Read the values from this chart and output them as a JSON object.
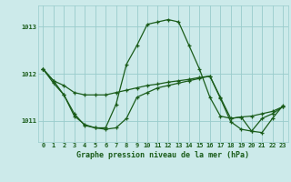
{
  "title": "Graphe pression niveau de la mer (hPa)",
  "bg_color": "#cceaea",
  "grid_color": "#99cccc",
  "line_color": "#1a5c1a",
  "xlim": [
    -0.5,
    23.5
  ],
  "ylim": [
    1010.55,
    1013.45
  ],
  "yticks": [
    1011,
    1012,
    1013
  ],
  "xtick_labels": [
    "0",
    "1",
    "2",
    "3",
    "4",
    "5",
    "6",
    "7",
    "8",
    "9",
    "10",
    "11",
    "12",
    "13",
    "14",
    "15",
    "16",
    "17",
    "18",
    "19",
    "20",
    "21",
    "22",
    "23"
  ],
  "series": [
    [
      1012.1,
      1011.85,
      1011.75,
      1011.6,
      1011.55,
      1011.55,
      1011.55,
      1011.6,
      1011.65,
      1011.7,
      1011.75,
      1011.78,
      1011.82,
      1011.85,
      1011.88,
      1011.92,
      1011.95,
      1011.5,
      1011.05,
      1011.08,
      1011.1,
      1011.15,
      1011.2,
      1011.3
    ],
    [
      1012.1,
      1011.8,
      1011.55,
      1011.15,
      1010.9,
      1010.85,
      1010.82,
      1010.85,
      1011.05,
      1011.5,
      1011.6,
      1011.7,
      1011.75,
      1011.8,
      1011.85,
      1011.9,
      1011.95,
      1011.48,
      1010.98,
      1010.82,
      1010.78,
      1011.05,
      1011.15,
      1011.3
    ],
    [
      1012.1,
      1011.85,
      1011.55,
      1011.1,
      1010.92,
      1010.85,
      1010.85,
      1011.35,
      1012.2,
      1012.6,
      1013.05,
      1013.1,
      1013.15,
      1013.1,
      1012.6,
      1012.1,
      1011.5,
      1011.1,
      1011.05,
      1011.08,
      1010.78,
      1010.75,
      1011.05,
      1011.32
    ]
  ],
  "title_fontsize": 6,
  "tick_fontsize": 5,
  "linewidth": 0.9,
  "markersize": 3.5
}
